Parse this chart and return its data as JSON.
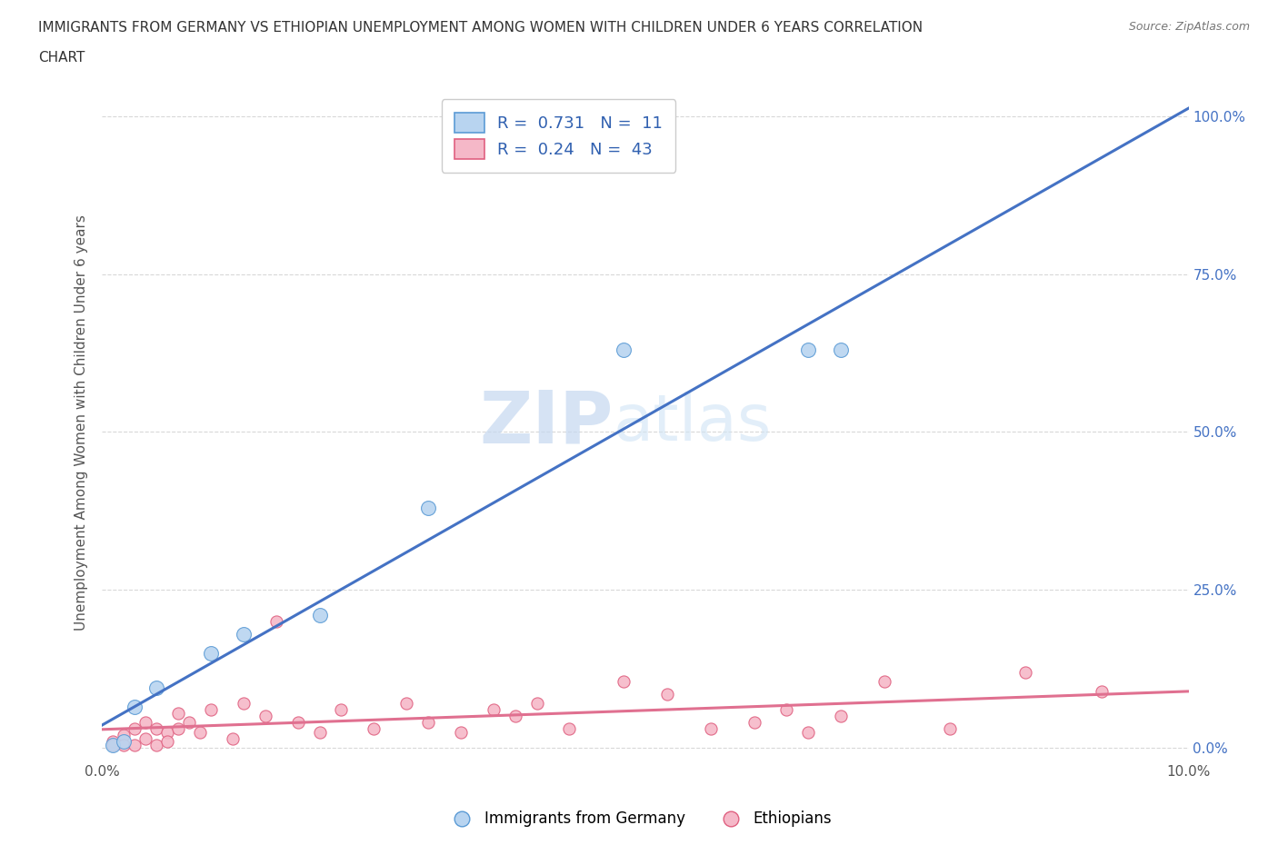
{
  "title_line1": "IMMIGRANTS FROM GERMANY VS ETHIOPIAN UNEMPLOYMENT AMONG WOMEN WITH CHILDREN UNDER 6 YEARS CORRELATION",
  "title_line2": "CHART",
  "source": "Source: ZipAtlas.com",
  "ylabel": "Unemployment Among Women with Children Under 6 years",
  "xlim": [
    0.0,
    0.1
  ],
  "ylim": [
    -0.02,
    1.05
  ],
  "yticks": [
    0.0,
    0.25,
    0.5,
    0.75,
    1.0
  ],
  "ytick_labels": [
    "0.0%",
    "25.0%",
    "50.0%",
    "75.0%",
    "100.0%"
  ],
  "xticks": [
    0.0,
    0.02,
    0.04,
    0.06,
    0.08,
    0.1
  ],
  "xtick_labels": [
    "0.0%",
    "",
    "",
    "",
    "",
    "10.0%"
  ],
  "germany_R": 0.731,
  "germany_N": 11,
  "ethiopia_R": 0.24,
  "ethiopia_N": 43,
  "germany_color": "#b8d4f0",
  "germany_edge_color": "#5b9bd5",
  "ethiopia_color": "#f5b8c8",
  "ethiopia_edge_color": "#e06080",
  "germany_line_color": "#4472c4",
  "ethiopia_line_color": "#e07090",
  "right_tick_color": "#4472c4",
  "germany_scatter_x": [
    0.001,
    0.002,
    0.003,
    0.005,
    0.01,
    0.013,
    0.02,
    0.03,
    0.048,
    0.065,
    0.068
  ],
  "germany_scatter_y": [
    0.005,
    0.01,
    0.065,
    0.095,
    0.15,
    0.18,
    0.21,
    0.38,
    0.63,
    0.63,
    0.63
  ],
  "ethiopia_scatter_x": [
    0.001,
    0.001,
    0.002,
    0.002,
    0.003,
    0.003,
    0.004,
    0.004,
    0.005,
    0.005,
    0.006,
    0.006,
    0.007,
    0.007,
    0.008,
    0.009,
    0.01,
    0.012,
    0.013,
    0.015,
    0.016,
    0.018,
    0.02,
    0.022,
    0.025,
    0.028,
    0.03,
    0.033,
    0.036,
    0.038,
    0.04,
    0.043,
    0.048,
    0.052,
    0.056,
    0.06,
    0.063,
    0.065,
    0.068,
    0.072,
    0.078,
    0.085,
    0.092
  ],
  "ethiopia_scatter_y": [
    0.01,
    0.005,
    0.02,
    0.005,
    0.03,
    0.005,
    0.04,
    0.015,
    0.03,
    0.005,
    0.025,
    0.01,
    0.055,
    0.03,
    0.04,
    0.025,
    0.06,
    0.015,
    0.07,
    0.05,
    0.2,
    0.04,
    0.025,
    0.06,
    0.03,
    0.07,
    0.04,
    0.025,
    0.06,
    0.05,
    0.07,
    0.03,
    0.105,
    0.085,
    0.03,
    0.04,
    0.06,
    0.025,
    0.05,
    0.105,
    0.03,
    0.12,
    0.09
  ],
  "watermark_zip": "ZIP",
  "watermark_atlas": "atlas",
  "background_color": "#ffffff",
  "grid_color": "#d8d8d8"
}
